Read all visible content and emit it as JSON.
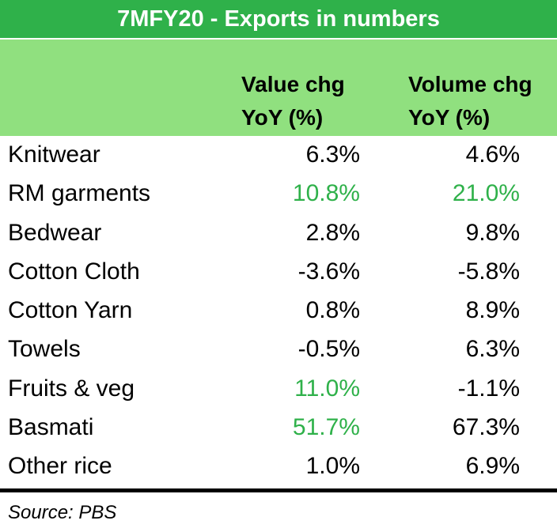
{
  "title": "7MFY20 - Exports in numbers",
  "headers": {
    "value_line1": "Value chg",
    "value_line2": "YoY (%)",
    "volume_line1": "Volume chg",
    "volume_line2": "YoY (%)"
  },
  "colors": {
    "title_bg": "#2fb14a",
    "header_bg": "#90e07f",
    "highlight_text": "#2fb14a"
  },
  "rows": [
    {
      "label": "Knitwear",
      "value_chg": "6.3%",
      "volume_chg": "4.6%",
      "value_highlight": false,
      "volume_highlight": false
    },
    {
      "label": "RM garments",
      "value_chg": "10.8%",
      "volume_chg": "21.0%",
      "value_highlight": true,
      "volume_highlight": true
    },
    {
      "label": "Bedwear",
      "value_chg": "2.8%",
      "volume_chg": "9.8%",
      "value_highlight": false,
      "volume_highlight": false
    },
    {
      "label": "Cotton Cloth",
      "value_chg": "-3.6%",
      "volume_chg": "-5.8%",
      "value_highlight": false,
      "volume_highlight": false
    },
    {
      "label": "Cotton Yarn",
      "value_chg": "0.8%",
      "volume_chg": "8.9%",
      "value_highlight": false,
      "volume_highlight": false
    },
    {
      "label": "Towels",
      "value_chg": "-0.5%",
      "volume_chg": "6.3%",
      "value_highlight": false,
      "volume_highlight": false
    },
    {
      "label": "Fruits & veg",
      "value_chg": "11.0%",
      "volume_chg": "-1.1%",
      "value_highlight": true,
      "volume_highlight": false
    },
    {
      "label": "Basmati",
      "value_chg": "51.7%",
      "volume_chg": "67.3%",
      "value_highlight": true,
      "volume_highlight": false
    },
    {
      "label": "Other rice",
      "value_chg": "1.0%",
      "volume_chg": "6.9%",
      "value_highlight": false,
      "volume_highlight": false
    }
  ],
  "source": "Source: PBS"
}
